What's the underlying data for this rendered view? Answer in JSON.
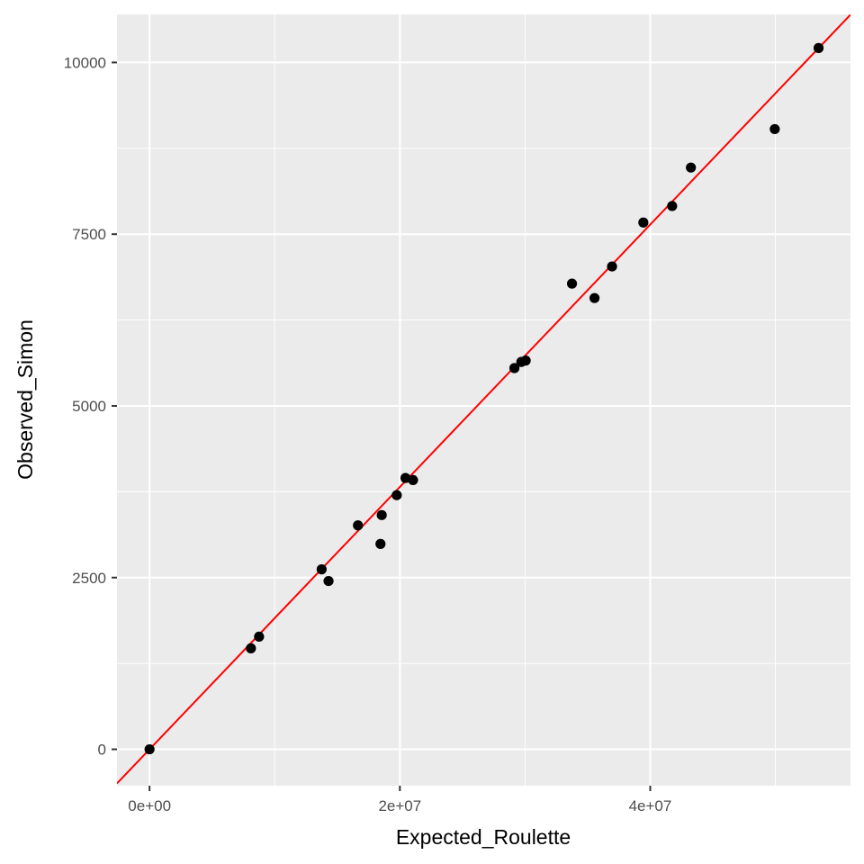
{
  "chart_data": {
    "type": "scatter",
    "title": "",
    "xlabel": "Expected_Roulette",
    "ylabel": "Observed_Simon",
    "xlim": [
      -2600000,
      56000000
    ],
    "ylim": [
      -530,
      10700
    ],
    "x_ticks": [
      {
        "value": 0,
        "label": "0e+00"
      },
      {
        "value": 20000000,
        "label": "2e+07"
      },
      {
        "value": 40000000,
        "label": "4e+07"
      }
    ],
    "x_minor_ticks": [
      10000000,
      30000000,
      50000000
    ],
    "y_ticks": [
      {
        "value": 0,
        "label": "0"
      },
      {
        "value": 2500,
        "label": "2500"
      },
      {
        "value": 5000,
        "label": "5000"
      },
      {
        "value": 7500,
        "label": "7500"
      },
      {
        "value": 10000,
        "label": "10000"
      }
    ],
    "y_minor_ticks": [
      1250,
      3750,
      6250,
      8750
    ],
    "grid": true,
    "points": [
      {
        "x": 0,
        "y": 0
      },
      {
        "x": 8100000,
        "y": 1470
      },
      {
        "x": 8750000,
        "y": 1640
      },
      {
        "x": 13750000,
        "y": 2620
      },
      {
        "x": 14300000,
        "y": 2450
      },
      {
        "x": 16650000,
        "y": 3260
      },
      {
        "x": 18450000,
        "y": 2990
      },
      {
        "x": 18550000,
        "y": 3410
      },
      {
        "x": 19750000,
        "y": 3700
      },
      {
        "x": 20450000,
        "y": 3950
      },
      {
        "x": 21050000,
        "y": 3920
      },
      {
        "x": 29150000,
        "y": 5550
      },
      {
        "x": 29700000,
        "y": 5640
      },
      {
        "x": 30050000,
        "y": 5660
      },
      {
        "x": 33750000,
        "y": 6780
      },
      {
        "x": 35550000,
        "y": 6570
      },
      {
        "x": 36950000,
        "y": 7030
      },
      {
        "x": 39450000,
        "y": 7670
      },
      {
        "x": 41750000,
        "y": 7910
      },
      {
        "x": 43250000,
        "y": 8470
      },
      {
        "x": 49950000,
        "y": 9030
      },
      {
        "x": 53450000,
        "y": 10210
      }
    ],
    "reference_line": {
      "intercept": 0,
      "slope": 0.000191,
      "color": "#ff0000"
    },
    "point_color": "#000000",
    "panel_color": "#ebebeb",
    "grid_color": "#ffffff"
  }
}
